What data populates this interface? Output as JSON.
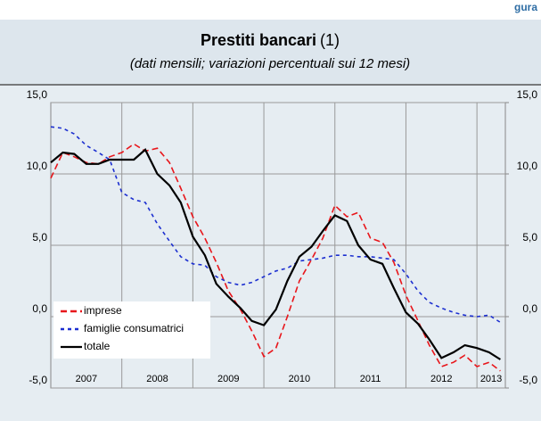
{
  "corner_label": "gura",
  "chart_data": {
    "type": "line",
    "title": "Prestiti bancari",
    "title_note": "(1)",
    "subtitle": "(dati mensili; variazioni percentuali sui 12 mesi)",
    "x": [
      2007.0,
      2007.17,
      2007.33,
      2007.5,
      2007.67,
      2007.83,
      2008.0,
      2008.17,
      2008.33,
      2008.5,
      2008.67,
      2008.83,
      2009.0,
      2009.17,
      2009.33,
      2009.5,
      2009.67,
      2009.83,
      2010.0,
      2010.17,
      2010.33,
      2010.5,
      2010.67,
      2010.83,
      2011.0,
      2011.17,
      2011.33,
      2011.5,
      2011.67,
      2011.83,
      2012.0,
      2012.17,
      2012.33,
      2012.5,
      2012.67,
      2012.83,
      2013.0,
      2013.17,
      2013.33
    ],
    "xlim": [
      2007,
      2013.4
    ],
    "xticks": [
      {
        "value": 2007.5,
        "label": "2007"
      },
      {
        "value": 2008.5,
        "label": "2008"
      },
      {
        "value": 2009.5,
        "label": "2009"
      },
      {
        "value": 2010.5,
        "label": "2010"
      },
      {
        "value": 2011.5,
        "label": "2011"
      },
      {
        "value": 2012.5,
        "label": "2012"
      },
      {
        "value": 2013.2,
        "label": "2013"
      }
    ],
    "xgrid": [
      2008,
      2009,
      2010,
      2011,
      2012,
      2013
    ],
    "ylim": [
      -5,
      15
    ],
    "yticks": [
      {
        "value": -5,
        "label": "-5,0"
      },
      {
        "value": 0,
        "label": "0,0"
      },
      {
        "value": 5,
        "label": "5,0"
      },
      {
        "value": 10,
        "label": "10,0"
      },
      {
        "value": 15,
        "label": "15,0"
      }
    ],
    "y2lim": [
      -5,
      15
    ],
    "y2ticks": [
      {
        "value": -5,
        "label": "-5,0"
      },
      {
        "value": 0,
        "label": "0,0"
      },
      {
        "value": 5,
        "label": "5,0"
      },
      {
        "value": 10,
        "label": "10,0"
      },
      {
        "value": 15,
        "label": "15,0"
      }
    ],
    "grid": true,
    "legend": "lower left",
    "series": [
      {
        "name": "imprese",
        "color": "#e8161b",
        "dash": "7,4",
        "values": [
          9.7,
          11.5,
          11.2,
          10.8,
          10.7,
          11.2,
          11.5,
          12.1,
          11.6,
          11.8,
          10.8,
          9.0,
          7.0,
          5.5,
          3.8,
          1.8,
          0.5,
          -1.0,
          -2.8,
          -2.2,
          0.0,
          2.5,
          4.0,
          5.5,
          7.8,
          7.0,
          7.3,
          5.5,
          5.2,
          3.8,
          1.5,
          -0.3,
          -2.0,
          -3.5,
          -3.2,
          -2.7,
          -3.5,
          -3.2,
          -3.8
        ]
      },
      {
        "name": "famiglie consumatrici",
        "color": "#1c2fd0",
        "dash": "4,4",
        "values": [
          13.3,
          13.2,
          12.8,
          12.0,
          11.5,
          11.0,
          8.7,
          8.2,
          8.0,
          6.5,
          5.3,
          4.2,
          3.7,
          3.6,
          2.8,
          2.4,
          2.2,
          2.4,
          2.8,
          3.2,
          3.4,
          3.9,
          4.0,
          4.1,
          4.3,
          4.3,
          4.2,
          4.2,
          4.1,
          4.0,
          3.0,
          1.8,
          1.0,
          0.6,
          0.3,
          0.1,
          0.0,
          0.1,
          -0.4
        ]
      },
      {
        "name": "totale",
        "color": "#000000",
        "dash": "none",
        "values": [
          10.8,
          11.5,
          11.4,
          10.7,
          10.7,
          11.0,
          11.0,
          11.0,
          11.7,
          10.0,
          9.2,
          8.0,
          5.6,
          4.3,
          2.3,
          1.4,
          0.6,
          -0.3,
          -0.6,
          0.5,
          2.5,
          4.2,
          4.9,
          6.0,
          7.1,
          6.7,
          5.0,
          4.0,
          3.7,
          2.0,
          0.3,
          -0.5,
          -1.6,
          -2.9,
          -2.5,
          -2.0,
          -2.2,
          -2.5,
          -3.0
        ]
      }
    ]
  }
}
